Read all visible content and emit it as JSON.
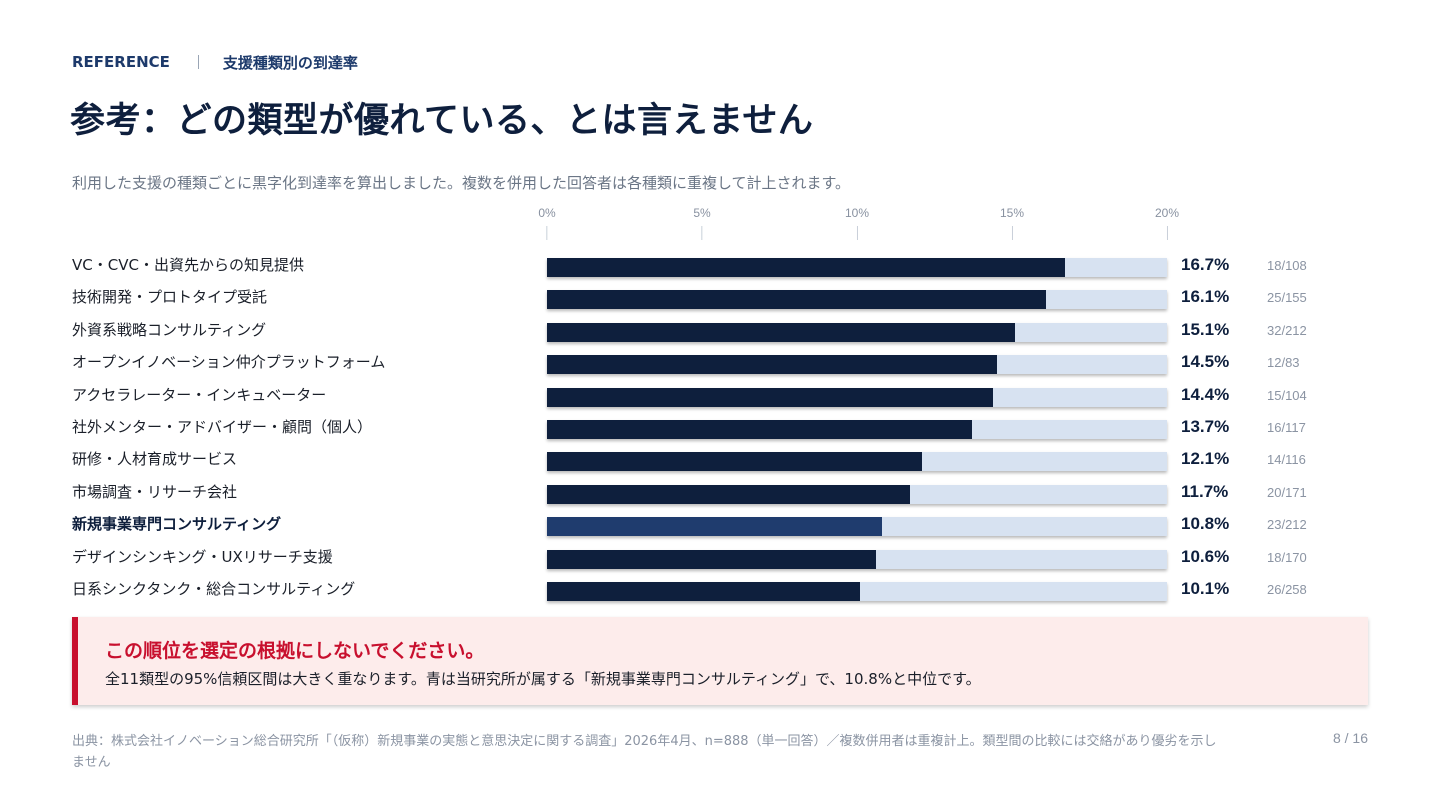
{
  "header": {
    "eyebrow_left": "REFERENCE",
    "eyebrow_right": "支援種類別の到達率",
    "title": "参考：どの類型が優れている、とは言えません",
    "subtitle": "利用した支援の種類ごとに黒字化到達率を算出しました。複数を併用した回答者は各種類に重複して計上されます。"
  },
  "chart_data": {
    "type": "bar",
    "orientation": "horizontal",
    "xlim": [
      0,
      20
    ],
    "ticks": [
      {
        "value": 0,
        "label": "0%"
      },
      {
        "value": 5,
        "label": "5%"
      },
      {
        "value": 10,
        "label": "10%"
      },
      {
        "value": 15,
        "label": "15%"
      },
      {
        "value": 20,
        "label": "20%"
      }
    ],
    "colors": {
      "bar": "#0e1f3d",
      "highlight": "#1f3c6e",
      "track": "#d7e2f1"
    },
    "rows": [
      {
        "label": "VC・CVC・出資先からの知見提供",
        "value": 16.7,
        "value_label": "16.7%",
        "count": "18/108",
        "highlight": false
      },
      {
        "label": "技術開発・プロトタイプ受託",
        "value": 16.1,
        "value_label": "16.1%",
        "count": "25/155",
        "highlight": false
      },
      {
        "label": "外資系戦略コンサルティング",
        "value": 15.1,
        "value_label": "15.1%",
        "count": "32/212",
        "highlight": false
      },
      {
        "label": "オープンイノベーション仲介プラットフォーム",
        "value": 14.5,
        "value_label": "14.5%",
        "count": "12/83",
        "highlight": false
      },
      {
        "label": "アクセラレーター・インキュベーター",
        "value": 14.4,
        "value_label": "14.4%",
        "count": "15/104",
        "highlight": false
      },
      {
        "label": "社外メンター・アドバイザー・顧問（個人）",
        "value": 13.7,
        "value_label": "13.7%",
        "count": "16/117",
        "highlight": false
      },
      {
        "label": "研修・人材育成サービス",
        "value": 12.1,
        "value_label": "12.1%",
        "count": "14/116",
        "highlight": false
      },
      {
        "label": "市場調査・リサーチ会社",
        "value": 11.7,
        "value_label": "11.7%",
        "count": "20/171",
        "highlight": false
      },
      {
        "label": "新規事業専門コンサルティング",
        "value": 10.8,
        "value_label": "10.8%",
        "count": "23/212",
        "highlight": true
      },
      {
        "label": "デザインシンキング・UXリサーチ支援",
        "value": 10.6,
        "value_label": "10.6%",
        "count": "18/170",
        "highlight": false
      },
      {
        "label": "日系シンクタンク・総合コンサルティング",
        "value": 10.1,
        "value_label": "10.1%",
        "count": "26/258",
        "highlight": false
      }
    ]
  },
  "callout": {
    "title": "この順位を選定の根拠にしないでください。",
    "body": "全11類型の95%信頼区間は大きく重なります。青は当研究所が属する「新規事業専門コンサルティング」で、10.8%と中位です。",
    "accent_color": "#c8102e"
  },
  "footer": {
    "source": "出典：株式会社イノベーション総合研究所「（仮称）新規事業の実態と意思決定に関する調査」2026年4月、n=888（単一回答）／複数併用者は重複計上。類型間の比較には交絡があり優劣を示しません",
    "page": "8 / 16"
  }
}
